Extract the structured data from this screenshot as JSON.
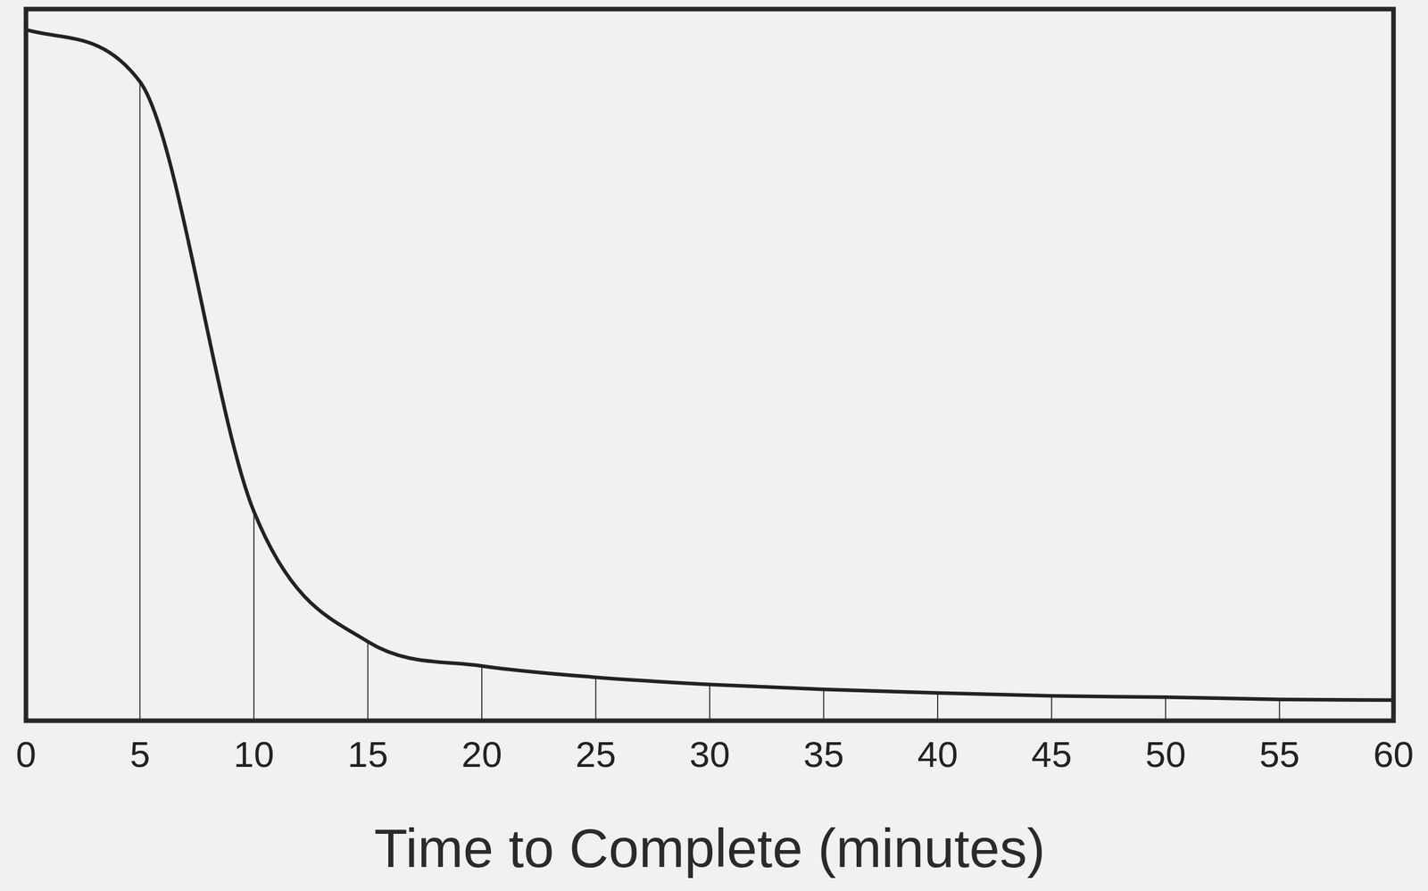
{
  "chart_data": {
    "type": "line",
    "x_label": "Time to Complete (minutes)",
    "x": [
      0,
      5,
      10,
      15,
      20,
      25,
      30,
      35,
      40,
      45,
      50,
      55,
      60
    ],
    "values": [
      97.1,
      89.8,
      29.4,
      11.1,
      7.7,
      6.1,
      5.1,
      4.4,
      3.9,
      3.5,
      3.3,
      3.0,
      2.9
    ],
    "color": "#222222",
    "marker": "none",
    "xlim": [
      0,
      60
    ],
    "xticks": [
      0,
      5,
      10,
      15,
      20,
      25,
      30,
      35,
      40,
      45,
      50,
      55,
      60
    ],
    "ylim": [
      0,
      100
    ],
    "grid": false,
    "tick_labels": "x"
  }
}
